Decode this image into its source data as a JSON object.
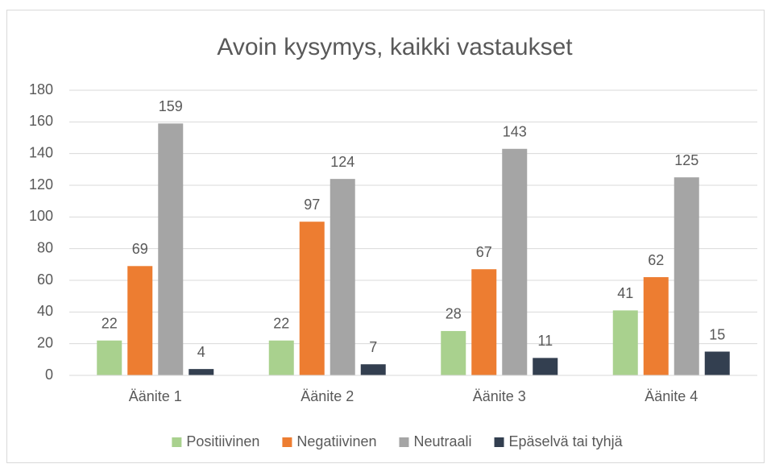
{
  "chart_data": {
    "type": "bar",
    "title": "Avoin kysymys, kaikki vastaukset",
    "categories": [
      "Äänite 1",
      "Äänite 2",
      "Äänite 3",
      "Äänite 4"
    ],
    "series": [
      {
        "name": "Positiivinen",
        "color": "#a9d18e",
        "values": [
          22,
          22,
          28,
          41
        ]
      },
      {
        "name": "Negatiivinen",
        "color": "#ed7d31",
        "values": [
          69,
          97,
          67,
          62
        ]
      },
      {
        "name": "Neutraali",
        "color": "#a5a5a5",
        "values": [
          159,
          124,
          143,
          125
        ]
      },
      {
        "name": "Epäselvä tai tyhjä",
        "color": "#333f50",
        "values": [
          4,
          7,
          11,
          15
        ]
      }
    ],
    "ylim": [
      0,
      180
    ],
    "yticks": [
      0,
      20,
      40,
      60,
      80,
      100,
      120,
      140,
      160,
      180
    ],
    "grid": true,
    "legend": "bottom"
  }
}
